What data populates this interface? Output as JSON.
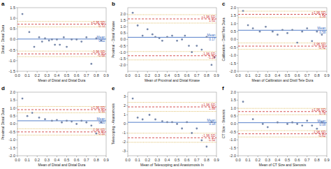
{
  "chart_data": [
    {
      "type": "scatter",
      "title": "a",
      "x_label": "Mean of Distal and Distal Dura",
      "y_label": "Distal - Distal Dura",
      "xlim": [
        0.0,
        0.9
      ],
      "ylim": [
        -1.5,
        1.5
      ],
      "xticks": [
        {
          "value": 0.0,
          "label": "0.0"
        },
        0.1,
        0.2,
        0.3,
        0.4,
        0.5,
        0.6,
        0.7,
        0.8,
        0.9
      ],
      "yticks": [
        -1.5,
        {
          "value": -1.0,
          "label": "-1.0"
        },
        -0.5,
        {
          "value": 0.0,
          "label": "0.0"
        },
        0.5,
        {
          "value": 1.0,
          "label": "1.0"
        },
        1.5
      ],
      "grid": false,
      "color": "#7788aa",
      "marker": "circle",
      "x": [
        0.05,
        0.12,
        0.17,
        0.22,
        0.25,
        0.28,
        0.32,
        0.35,
        0.38,
        0.4,
        0.43,
        0.47,
        0.5,
        0.55,
        0.6,
        0.65,
        0.7,
        0.75,
        0.8,
        0.85
      ],
      "values": [
        1.2,
        0.35,
        -0.35,
        0.1,
        -0.1,
        0.05,
        -0.05,
        0.0,
        -0.25,
        0.0,
        -0.25,
        0.1,
        -0.35,
        0.0,
        0.0,
        -0.1,
        0.1,
        -1.15,
        0.05,
        -0.05
      ],
      "hlines": [
        {
          "value": 0.02,
          "color": "#4472c4",
          "line_style": "solid",
          "label": "Mean\n0.02"
        },
        {
          "value": 0.72,
          "color": "#d04040",
          "line_style": "dashed",
          "label": "+1.96 SD\n0.72"
        },
        {
          "value": -0.68,
          "color": "#d04040",
          "line_style": "dashed",
          "label": "-1.96 SD\n-0.68"
        },
        {
          "value": 0.85,
          "color": "#d0a020",
          "line_style": "dotted"
        },
        {
          "value": 0.59,
          "color": "#d0a020",
          "line_style": "dotted"
        },
        {
          "value": -0.55,
          "color": "#d0a020",
          "line_style": "dotted"
        },
        {
          "value": -0.81,
          "color": "#d0a020",
          "line_style": "dotted"
        }
      ]
    },
    {
      "type": "scatter",
      "title": "b",
      "x_label": "Mean of Proximal and Distal Kinase",
      "y_label": "Proximal - Distal Kinase",
      "xlim": [
        0.0,
        0.9
      ],
      "ylim": [
        -2.5,
        2.5
      ],
      "xticks": [
        {
          "value": 0.0,
          "label": "0.0"
        },
        0.1,
        0.2,
        0.3,
        0.4,
        0.5,
        0.6,
        0.7,
        0.8,
        0.9
      ],
      "yticks": [
        {
          "value": -2.0,
          "label": "-2.0"
        },
        -1.5,
        {
          "value": -1.0,
          "label": "-1.0"
        },
        -0.5,
        {
          "value": 0.0,
          "label": "0.0"
        },
        0.5,
        {
          "value": 1.0,
          "label": "1.0"
        },
        1.5,
        {
          "value": 2.0,
          "label": "2.0"
        }
      ],
      "grid": false,
      "color": "#7788aa",
      "marker": "circle",
      "x": [
        0.05,
        0.1,
        0.15,
        0.2,
        0.25,
        0.28,
        0.32,
        0.35,
        0.4,
        0.45,
        0.5,
        0.55,
        0.58,
        0.62,
        0.65,
        0.7,
        0.75,
        0.8,
        0.85,
        0.88
      ],
      "values": [
        2.1,
        1.1,
        0.3,
        0.8,
        0.4,
        0.2,
        0.1,
        -0.1,
        0.2,
        0.3,
        -0.1,
        0.0,
        0.3,
        -0.5,
        -1.0,
        -0.5,
        -0.8,
        0.2,
        -2.0,
        -1.4
      ],
      "hlines": [
        {
          "value": 0.17,
          "color": "#4472c4",
          "line_style": "solid",
          "label": "Mean\n0.17"
        },
        {
          "value": 1.62,
          "color": "#d04040",
          "line_style": "dashed",
          "label": "+1.96 SD\n1.62"
        },
        {
          "value": -1.28,
          "color": "#d04040",
          "line_style": "dashed",
          "label": "-1.96 SD\n-1.28"
        },
        {
          "value": 1.95,
          "color": "#d0a020",
          "line_style": "dotted"
        },
        {
          "value": 1.29,
          "color": "#d0a020",
          "line_style": "dotted"
        },
        {
          "value": -0.95,
          "color": "#d0a020",
          "line_style": "dotted"
        },
        {
          "value": -1.61,
          "color": "#d0a020",
          "line_style": "dotted"
        }
      ]
    },
    {
      "type": "scatter",
      "title": "c",
      "x_label": "Mean of Calibration and Distil Tele Dura",
      "y_label": "Calibration - Distil Tele Dura",
      "xlim": [
        0.0,
        0.9
      ],
      "ylim": [
        -2.0,
        2.0
      ],
      "xticks": [
        {
          "value": 0.0,
          "label": "0.0"
        },
        0.1,
        0.2,
        0.3,
        0.4,
        0.5,
        0.6,
        0.7,
        0.8,
        0.9
      ],
      "yticks": [
        {
          "value": -2.0,
          "label": "-2.0"
        },
        -1.5,
        {
          "value": -1.0,
          "label": "-1.0"
        },
        -0.5,
        {
          "value": 0.0,
          "label": "0.0"
        },
        0.5,
        {
          "value": 1.0,
          "label": "1.0"
        },
        1.5,
        {
          "value": 2.0,
          "label": "2.0"
        }
      ],
      "grid": false,
      "color": "#7788aa",
      "marker": "circle",
      "x": [
        0.05,
        0.1,
        0.15,
        0.22,
        0.28,
        0.35,
        0.4,
        0.45,
        0.5,
        0.55,
        0.6,
        0.65,
        0.7,
        0.75,
        0.8,
        0.85
      ],
      "values": [
        1.8,
        0.9,
        0.7,
        0.5,
        0.8,
        0.5,
        0.3,
        0.6,
        0.4,
        0.6,
        -0.2,
        0.5,
        0.7,
        -0.1,
        0.5,
        0.3
      ],
      "hlines": [
        {
          "value": 0.58,
          "color": "#4472c4",
          "line_style": "solid",
          "label": "Mean\n0.58"
        },
        {
          "value": 1.58,
          "color": "#d04040",
          "line_style": "dashed",
          "label": "+1.96 SD\n1.58"
        },
        {
          "value": -0.42,
          "color": "#d04040",
          "line_style": "dashed",
          "label": "-1.96 SD\n-0.42"
        },
        {
          "value": 1.78,
          "color": "#d0a020",
          "line_style": "dotted"
        },
        {
          "value": 1.38,
          "color": "#d0a020",
          "line_style": "dotted"
        },
        {
          "value": -0.22,
          "color": "#d0a020",
          "line_style": "dotted"
        },
        {
          "value": -0.62,
          "color": "#d0a020",
          "line_style": "dotted"
        }
      ]
    },
    {
      "type": "scatter",
      "title": "d",
      "x_label": "Mean of Distal and Distal Dura",
      "y_label": "Proximal Distal Dura",
      "xlim": [
        0.0,
        0.9
      ],
      "ylim": [
        -2.0,
        2.0
      ],
      "xticks": [
        {
          "value": 0.0,
          "label": "0.0"
        },
        0.1,
        0.2,
        0.3,
        0.4,
        0.5,
        0.6,
        0.7,
        0.8,
        0.9
      ],
      "yticks": [
        {
          "value": -2.0,
          "label": "-2.0"
        },
        -1.5,
        {
          "value": -1.0,
          "label": "-1.0"
        },
        -0.5,
        {
          "value": 0.0,
          "label": "0.0"
        },
        0.5,
        {
          "value": 1.0,
          "label": "1.0"
        },
        1.5,
        {
          "value": 2.0,
          "label": "2.0"
        }
      ],
      "grid": false,
      "color": "#7788aa",
      "marker": "circle",
      "x": [
        0.05,
        0.1,
        0.15,
        0.22,
        0.28,
        0.35,
        0.4,
        0.45,
        0.5,
        0.55,
        0.6,
        0.65,
        0.7,
        0.75,
        0.8,
        0.85
      ],
      "values": [
        1.6,
        0.5,
        0.7,
        0.4,
        0.3,
        0.2,
        0.25,
        0.1,
        0.2,
        0.15,
        0.0,
        0.2,
        0.1,
        -0.1,
        -0.6,
        0.1
      ],
      "hlines": [
        {
          "value": 0.2,
          "color": "#4472c4",
          "line_style": "solid",
          "label": "Mean\n0.20"
        },
        {
          "value": 0.9,
          "color": "#d04040",
          "line_style": "dashed",
          "label": "+1.96 SD\n0.90"
        },
        {
          "value": -0.5,
          "color": "#d04040",
          "line_style": "dashed",
          "label": "-1.96 SD\n-0.50"
        },
        {
          "value": 1.1,
          "color": "#d0a020",
          "line_style": "dotted"
        },
        {
          "value": 0.7,
          "color": "#d0a020",
          "line_style": "dotted"
        },
        {
          "value": -0.3,
          "color": "#d0a020",
          "line_style": "dotted"
        },
        {
          "value": -0.7,
          "color": "#d0a020",
          "line_style": "dotted"
        }
      ]
    },
    {
      "type": "scatter",
      "title": "e",
      "x_label": "Mean of Telescoping and Anastomosis In",
      "y_label": "Telescoping - Anastomosis",
      "xlim": [
        0.0,
        0.9
      ],
      "ylim": [
        -3.5,
        3.5
      ],
      "xticks": [
        {
          "value": 0.0,
          "label": "0.0"
        },
        0.1,
        0.2,
        0.3,
        0.4,
        0.5,
        0.6,
        0.7,
        0.8,
        0.9
      ],
      "yticks": [
        -3.0,
        -2.0,
        -1.0,
        0.0,
        1.0,
        2.0,
        3.0
      ],
      "grid": false,
      "color": "#7788aa",
      "marker": "circle",
      "x": [
        0.05,
        0.1,
        0.15,
        0.22,
        0.28,
        0.35,
        0.4,
        0.45,
        0.5,
        0.55,
        0.6,
        0.65,
        0.7,
        0.75,
        0.8,
        0.85
      ],
      "values": [
        2.8,
        0.7,
        0.5,
        1.0,
        0.5,
        0.3,
        0.2,
        0.2,
        0.0,
        -0.5,
        0.2,
        -1.0,
        -0.5,
        -1.8,
        -2.5,
        0.2
      ],
      "hlines": [
        {
          "value": 0.18,
          "color": "#4472c4",
          "line_style": "solid",
          "label": "Mean\n0.18"
        },
        {
          "value": 1.88,
          "color": "#d04040",
          "line_style": "dashed",
          "label": "+1.96 SD\n1.88"
        },
        {
          "value": -1.52,
          "color": "#d04040",
          "line_style": "dashed",
          "label": "-1.96 SD\n-1.52"
        },
        {
          "value": 2.38,
          "color": "#d0a020",
          "line_style": "dotted"
        },
        {
          "value": 1.38,
          "color": "#d0a020",
          "line_style": "dotted"
        },
        {
          "value": -1.02,
          "color": "#d0a020",
          "line_style": "dotted"
        },
        {
          "value": -2.02,
          "color": "#d0a020",
          "line_style": "dotted"
        }
      ]
    },
    {
      "type": "scatter",
      "title": "f",
      "x_label": "Mean of CT Size and Stenosis",
      "y_label": "CT Size - Stenosis",
      "xlim": [
        0.0,
        0.9
      ],
      "ylim": [
        -2.0,
        2.0
      ],
      "xticks": [
        {
          "value": 0.0,
          "label": "0.0"
        },
        0.1,
        0.2,
        0.3,
        0.4,
        0.5,
        0.6,
        0.7,
        0.8,
        0.9
      ],
      "yticks": [
        {
          "value": -2.0,
          "label": "-2.0"
        },
        -1.5,
        {
          "value": -1.0,
          "label": "-1.0"
        },
        -0.5,
        {
          "value": 0.0,
          "label": "0.0"
        },
        0.5,
        {
          "value": 1.0,
          "label": "1.0"
        },
        1.5,
        {
          "value": 2.0,
          "label": "2.0"
        }
      ],
      "grid": false,
      "color": "#7788aa",
      "marker": "circle",
      "x": [
        0.05,
        0.15,
        0.25,
        0.3,
        0.4,
        0.5,
        0.55,
        0.6,
        0.65,
        0.7,
        0.75,
        0.8,
        0.85
      ],
      "values": [
        1.4,
        0.3,
        0.0,
        -0.2,
        0.1,
        0.0,
        0.1,
        0.0,
        -0.1,
        0.2,
        -0.1,
        -0.3,
        0.1
      ],
      "hlines": [
        {
          "value": 0.08,
          "color": "#4472c4",
          "line_style": "solid",
          "label": "Mean\n0.08"
        },
        {
          "value": 0.78,
          "color": "#d04040",
          "line_style": "dashed",
          "label": "+1.96 SD\n0.78"
        },
        {
          "value": -0.62,
          "color": "#d04040",
          "line_style": "dashed",
          "label": "-1.96 SD\n-0.62"
        },
        {
          "value": 0.98,
          "color": "#d0a020",
          "line_style": "dotted"
        },
        {
          "value": 0.58,
          "color": "#d0a020",
          "line_style": "dotted"
        },
        {
          "value": -0.42,
          "color": "#d0a020",
          "line_style": "dotted"
        },
        {
          "value": -0.82,
          "color": "#d0a020",
          "line_style": "dotted"
        }
      ]
    }
  ]
}
